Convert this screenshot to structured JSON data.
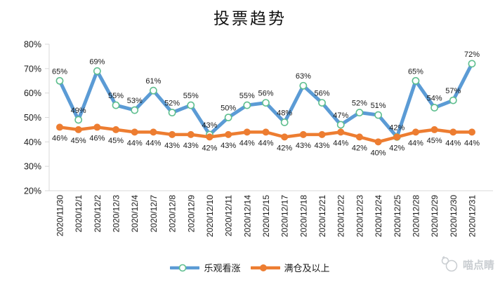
{
  "title": "投票趋势",
  "legend": {
    "items": [
      {
        "label": "乐观看涨"
      },
      {
        "label": "满仓及以上"
      }
    ]
  },
  "watermark": {
    "text": "喵点睛"
  },
  "colors": {
    "blue_line": "#5B9BD5",
    "blue_marker_stroke": "#5FBF8F",
    "orange_line": "#ED7D31",
    "axis_line": "#D9D9D9",
    "label_text": "#1a1a1a",
    "watermark_gray": "#c9cdd1"
  },
  "chart_data": {
    "type": "line",
    "title": "投票趋势",
    "categories": [
      "2020/11/30",
      "2020/12/1",
      "2020/12/2",
      "2020/12/3",
      "2020/12/4",
      "2020/12/7",
      "2020/12/8",
      "2020/12/9",
      "2020/12/10",
      "2020/12/11",
      "2020/12/14",
      "2020/12/15",
      "2020/12/17",
      "2020/12/18",
      "2020/12/21",
      "2020/12/22",
      "2020/12/23",
      "2020/12/24",
      "2020/12/25",
      "2020/12/28",
      "2020/12/29",
      "2020/12/30",
      "2020/12/31"
    ],
    "series": [
      {
        "name": "乐观看涨",
        "values": [
          65,
          49,
          69,
          55,
          53,
          61,
          52,
          55,
          43,
          50,
          55,
          56,
          48,
          63,
          56,
          47,
          52,
          51,
          42,
          65,
          54,
          57,
          72
        ],
        "color": "#5B9BD5",
        "marker": "open-circle",
        "marker_stroke": "#5FBF8F",
        "line_width": 5,
        "label_position": "above"
      },
      {
        "name": "满仓及以上",
        "values": [
          46,
          45,
          46,
          45,
          44,
          44,
          43,
          43,
          42,
          43,
          44,
          44,
          42,
          43,
          43,
          44,
          42,
          40,
          42,
          44,
          45,
          44,
          44
        ],
        "color": "#ED7D31",
        "marker": "solid-circle",
        "line_width": 4.5,
        "label_position": "below"
      }
    ],
    "ylim": [
      20,
      80
    ],
    "ytick_step": 10,
    "ytick_format": "percent",
    "grid": false,
    "legend_position": "bottom",
    "data_labels": true
  }
}
